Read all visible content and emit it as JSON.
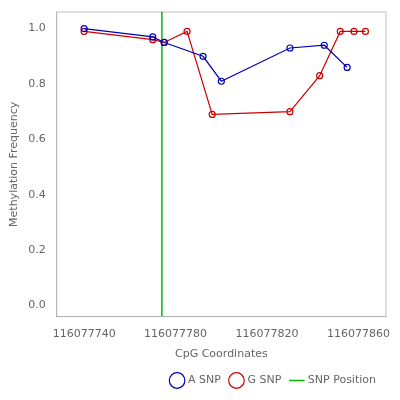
{
  "chart_data": {
    "type": "line",
    "xlabel": "CpG Coordinates",
    "ylabel": "Methylation Frequency",
    "series": [
      {
        "name": "A SNP",
        "color": "#0000BB",
        "marker": "circle",
        "x": [
          116077740,
          116077770,
          116077775,
          116077792,
          116077800,
          116077830,
          116077845,
          116077855
        ],
        "values": [
          1.0,
          0.97,
          0.95,
          0.9,
          0.81,
          0.93,
          0.94,
          0.86
        ]
      },
      {
        "name": "G SNP",
        "color": "#CC0000",
        "marker": "circle",
        "x": [
          116077740,
          116077770,
          116077775,
          116077785,
          116077796,
          116077830,
          116077843,
          116077852,
          116077858,
          116077863
        ],
        "values": [
          0.99,
          0.96,
          0.95,
          0.99,
          0.69,
          0.7,
          0.83,
          0.99,
          0.99,
          0.99
        ]
      }
    ],
    "vline": {
      "name": "SNP Position",
      "x": 116077774,
      "color": "#00BB00"
    },
    "xlim": [
      116077728,
      116077872
    ],
    "ylim": [
      -0.04,
      1.06
    ],
    "xticks": [
      116077740,
      116077780,
      116077820,
      116077860
    ],
    "yticks": [
      {
        "value": 0,
        "label": "0.0"
      },
      0.2,
      0.4,
      0.6,
      0.8,
      {
        "value": 1,
        "label": "1.0"
      }
    ],
    "grid": false,
    "legend": "lower right"
  }
}
